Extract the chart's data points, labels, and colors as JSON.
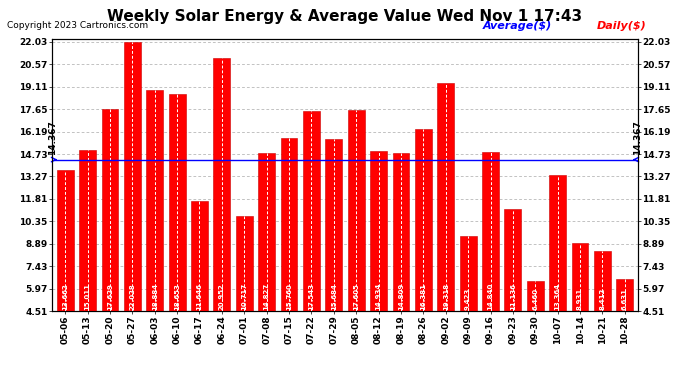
{
  "title": "Weekly Solar Energy & Average Value Wed Nov 1 17:43",
  "copyright": "Copyright 2023 Cartronics.com",
  "legend_average": "Average($)",
  "legend_daily": "Daily($)",
  "average_value": 14.367,
  "categories": [
    "05-06",
    "05-13",
    "05-20",
    "05-27",
    "06-03",
    "06-10",
    "06-17",
    "06-24",
    "07-01",
    "07-08",
    "07-15",
    "07-22",
    "07-29",
    "08-05",
    "08-12",
    "08-19",
    "08-26",
    "09-02",
    "09-09",
    "09-16",
    "09-23",
    "09-30",
    "10-07",
    "10-14",
    "10-21",
    "10-28"
  ],
  "values": [
    13.662,
    15.011,
    17.629,
    22.028,
    18.884,
    18.653,
    11.646,
    20.952,
    10.717,
    14.827,
    15.76,
    17.543,
    15.684,
    17.605,
    14.934,
    14.809,
    16.381,
    19.318,
    9.423,
    14.84,
    11.136,
    6.46,
    13.364,
    8.931,
    8.412,
    6.631
  ],
  "bar_color": "#ff0000",
  "bar_edge_color": "#cc0000",
  "avg_line_color": "#0000ff",
  "background_color": "#ffffff",
  "plot_bg_color": "#ffffff",
  "grid_color": "#aaaaaa",
  "yticks": [
    4.51,
    5.97,
    7.43,
    8.89,
    10.35,
    11.81,
    13.27,
    14.73,
    16.19,
    17.65,
    19.11,
    20.57,
    22.03
  ],
  "ymin": 4.51,
  "ymax": 22.03,
  "title_fontsize": 11,
  "copyright_fontsize": 6.5,
  "legend_fontsize": 8,
  "tick_fontsize": 6.5,
  "value_label_fontsize": 5.0,
  "avg_label": "14.367",
  "avg_label_fontsize": 6.5
}
